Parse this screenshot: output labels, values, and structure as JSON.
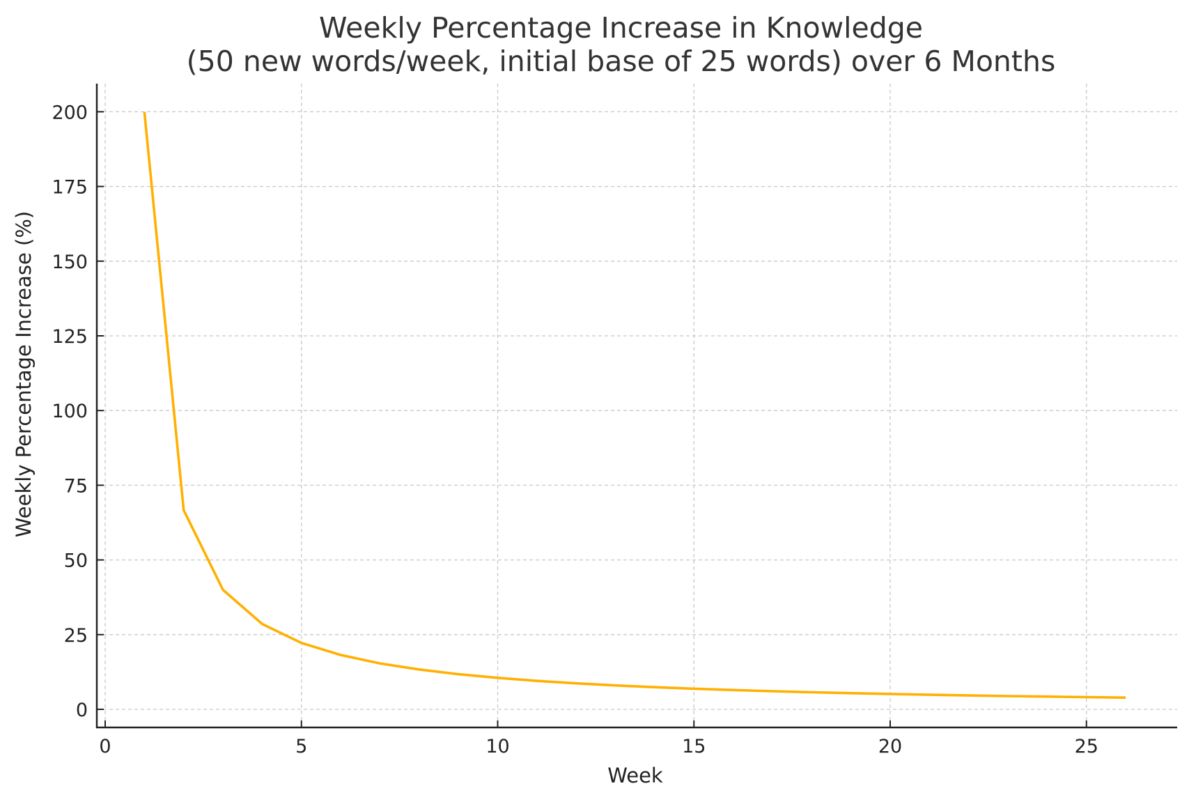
{
  "chart_data": {
    "type": "line",
    "title": "Weekly Percentage Increase in Knowledge",
    "subtitle": "(50 new words/week, initial base of 25 words) over 6 Months",
    "xlabel": "Week",
    "ylabel": "Weekly Percentage Increase (%)",
    "xlim": [
      -0.5,
      27.1
    ],
    "ylim": [
      -5,
      209.5
    ],
    "xticks": [
      0,
      5,
      10,
      15,
      20,
      25
    ],
    "yticks": [
      0,
      25,
      50,
      75,
      100,
      125,
      150,
      175,
      200
    ],
    "grid": true,
    "grid_style": "dashed",
    "legend": null,
    "series": [
      {
        "name": "Weekly Percentage Increase",
        "color": "#FFB000",
        "x": [
          1,
          2,
          3,
          4,
          5,
          6,
          7,
          8,
          9,
          10,
          11,
          12,
          13,
          14,
          15,
          16,
          17,
          18,
          19,
          20,
          21,
          22,
          23,
          24,
          25,
          26
        ],
        "values": [
          200.0,
          66.67,
          40.0,
          28.57,
          22.22,
          18.18,
          15.38,
          13.33,
          11.76,
          10.53,
          9.52,
          8.7,
          8.0,
          7.41,
          6.9,
          6.45,
          6.06,
          5.71,
          5.41,
          5.13,
          4.88,
          4.65,
          4.44,
          4.26,
          4.08,
          3.92
        ]
      }
    ]
  },
  "title": {
    "line1": "Weekly Percentage Increase in Knowledge",
    "line2": "(50 new words/week, initial base of 25 words) over 6 Months"
  },
  "axes": {
    "xlabel": "Week",
    "ylabel": "Weekly Percentage Increase (%)",
    "xtick_labels": [
      "0",
      "5",
      "10",
      "15",
      "20",
      "25"
    ],
    "ytick_labels": [
      "0",
      "25",
      "50",
      "75",
      "100",
      "125",
      "150",
      "175",
      "200"
    ]
  },
  "colors": {
    "line": "#FFB000",
    "grid": "#C8C8C8",
    "axis": "#222222",
    "title": "#333333"
  }
}
